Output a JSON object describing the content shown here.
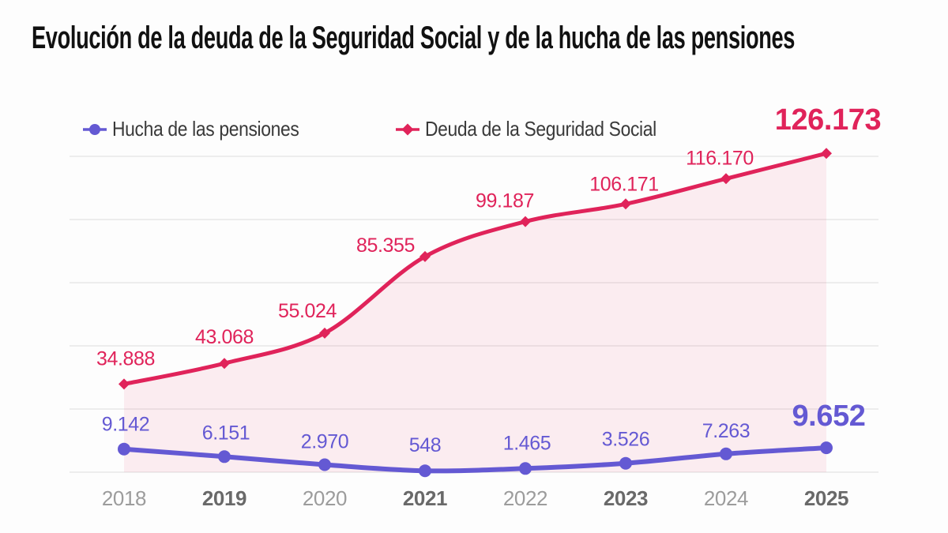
{
  "title": "Evolución de la deuda de la Seguridad Social y de la hucha de las pensiones",
  "colors": {
    "hucha": "#6459d3",
    "debt": "#e0235a",
    "debt_fill": "rgba(224,35,90,0.08)",
    "grid": "#ededed",
    "axis_label": "#9c9c9c",
    "axis_label_bold": "#696969",
    "legend_text": "#3a3a3a",
    "title": "#111111",
    "background": "#fdfdfd"
  },
  "legend": {
    "items": [
      {
        "label": "Hucha de las pensiones",
        "series": "hucha",
        "marker": "circle"
      },
      {
        "label": "Deuda de la Seguridad Social",
        "series": "debt",
        "marker": "diamond"
      }
    ]
  },
  "chart_data": {
    "type": "line",
    "title": "Evolución de la deuda de la Seguridad Social y de la hucha de las pensiones",
    "categories": [
      "2018",
      "2019",
      "2020",
      "2021",
      "2022",
      "2023",
      "2024",
      "2025"
    ],
    "bold_categories": [
      "2019",
      "2021",
      "2023",
      "2025"
    ],
    "series": [
      {
        "name": "Hucha de las pensiones",
        "key": "hucha",
        "marker": "circle",
        "values": [
          9142,
          6151,
          2970,
          548,
          1465,
          3526,
          7263,
          9652
        ],
        "labels": [
          "9.142",
          "6.151",
          "2.970",
          "548",
          "1.465",
          "3.526",
          "7.263",
          "9.652"
        ]
      },
      {
        "name": "Deuda de la Seguridad Social",
        "key": "debt",
        "marker": "diamond",
        "area_fill": true,
        "values": [
          34888,
          43068,
          55024,
          85355,
          99187,
          106171,
          116170,
          126173
        ],
        "labels": [
          "34.888",
          "43.068",
          "55.024",
          "85.355",
          "99.187",
          "106.171",
          "116.170",
          "126.173"
        ]
      }
    ],
    "ylim": [
      0,
      125000
    ],
    "gridline_step": 25000,
    "grid": true,
    "xlabel": "",
    "ylabel": "",
    "legend_position": "top",
    "last_value_highlighted": true
  }
}
